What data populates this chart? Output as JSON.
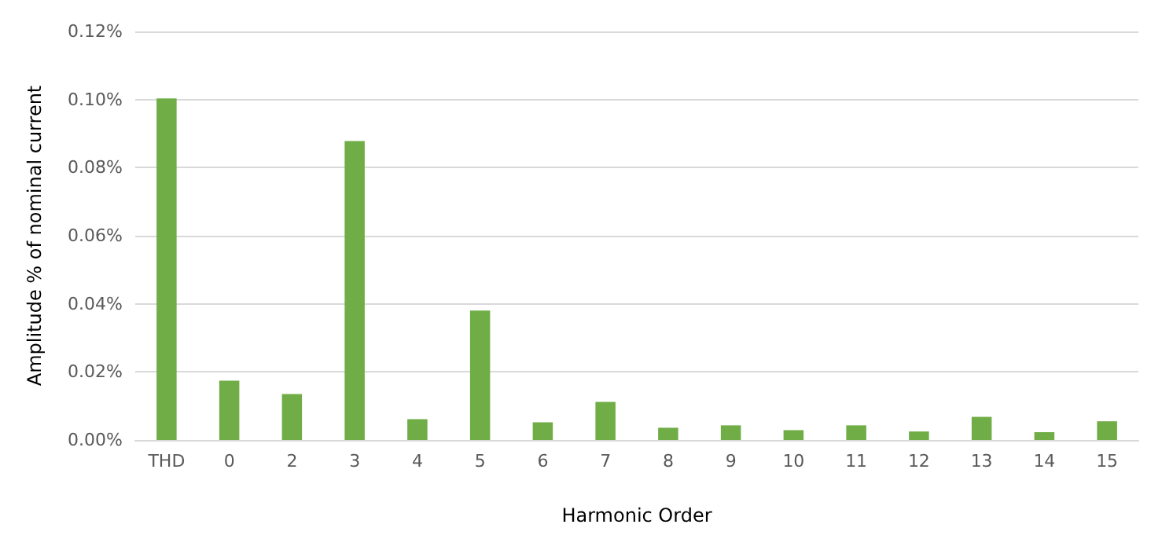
{
  "chart_data": {
    "type": "bar",
    "xlabel": "Harmonic Order",
    "ylabel": "Amplitude % of nominal current",
    "categories": [
      "THD",
      "0",
      "2",
      "3",
      "4",
      "5",
      "6",
      "7",
      "8",
      "9",
      "10",
      "11",
      "12",
      "13",
      "14",
      "15"
    ],
    "values": [
      0.1003,
      0.0174,
      0.0135,
      0.0878,
      0.0061,
      0.038,
      0.0052,
      0.0112,
      0.0036,
      0.0043,
      0.0029,
      0.0043,
      0.0025,
      0.0068,
      0.0023,
      0.0055
    ],
    "color": "#70ad47",
    "ylim": [
      0,
      0.12
    ],
    "yticks": [
      {
        "value": 0,
        "label": "0.00%"
      },
      {
        "value": 0.02,
        "label": "0.02%"
      },
      {
        "value": 0.04,
        "label": "0.04%"
      },
      {
        "value": 0.06,
        "label": "0.06%"
      },
      {
        "value": 0.08,
        "label": "0.08%"
      },
      {
        "value": 0.1,
        "label": "0.10%"
      },
      {
        "value": 0.12,
        "label": "0.12%"
      }
    ],
    "grid": "y"
  }
}
